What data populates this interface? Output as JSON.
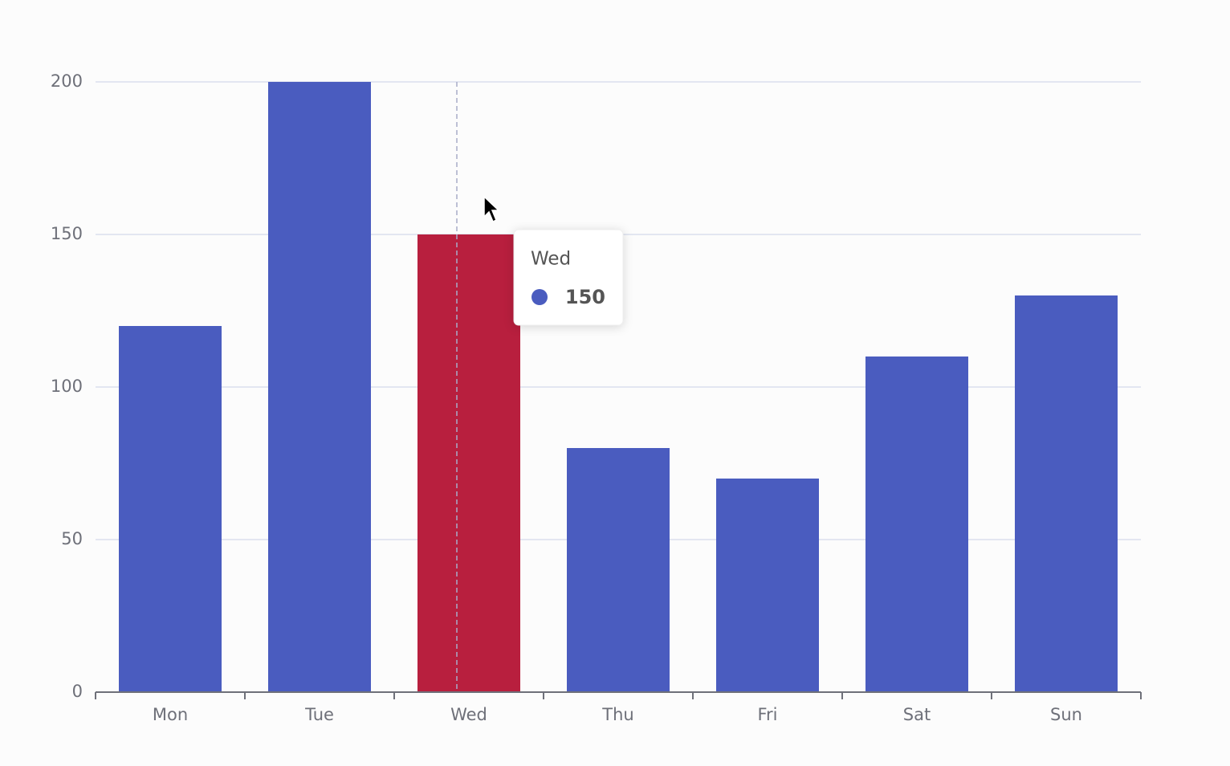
{
  "chart_data": {
    "type": "bar",
    "categories": [
      "Mon",
      "Tue",
      "Wed",
      "Thu",
      "Fri",
      "Sat",
      "Sun"
    ],
    "values": [
      120,
      200,
      150,
      80,
      70,
      110,
      130
    ],
    "color": "#4a5cbf",
    "colors": [
      "#4a5cbf",
      "#4a5cbf",
      "#b81f3e",
      "#4a5cbf",
      "#4a5cbf",
      "#4a5cbf",
      "#4a5cbf"
    ],
    "ylim": [
      0,
      200
    ],
    "yticks": [
      0,
      50,
      100,
      150,
      200
    ],
    "grid": true
  }
}
